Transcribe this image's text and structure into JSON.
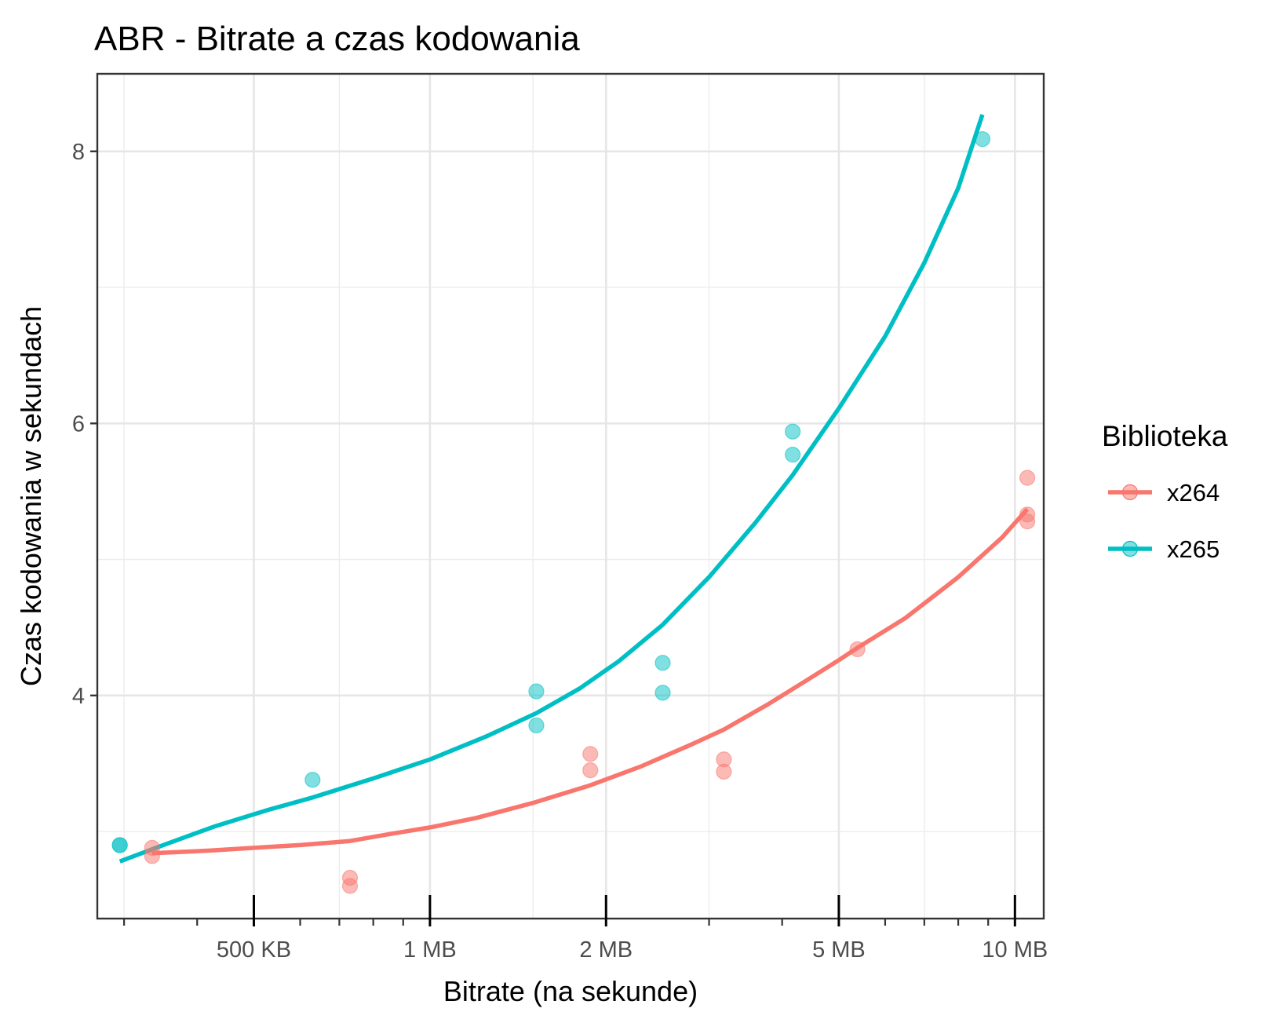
{
  "chart_data": {
    "type": "scatter",
    "title": "ABR - Bitrate a czas kodowania",
    "xlabel": "Bitrate (na sekunde)",
    "ylabel": "Czas kodowania w sekundach",
    "x_scale": "log10",
    "x_unit": "KB",
    "xlim": [
      270,
      11200
    ],
    "ylim": [
      2.36,
      8.57
    ],
    "x_ticks": [
      {
        "value": 500,
        "label": "500 KB"
      },
      {
        "value": 1000,
        "label": "1 MB"
      },
      {
        "value": 2000,
        "label": "2 MB"
      },
      {
        "value": 5000,
        "label": "5 MB"
      },
      {
        "value": 10000,
        "label": "10 MB"
      }
    ],
    "y_ticks": [
      {
        "value": 4,
        "label": "4"
      },
      {
        "value": 6,
        "label": "6"
      },
      {
        "value": 8,
        "label": "8"
      }
    ],
    "y_minor": [
      3,
      5,
      7
    ],
    "grid": true,
    "legend": {
      "title": "Biblioteka",
      "position": "right"
    },
    "series": [
      {
        "name": "x264",
        "color": "#F8766D",
        "points": [
          {
            "x": 335,
            "y": 2.88
          },
          {
            "x": 335,
            "y": 2.82
          },
          {
            "x": 730,
            "y": 2.66
          },
          {
            "x": 730,
            "y": 2.6
          },
          {
            "x": 1880,
            "y": 3.57
          },
          {
            "x": 1880,
            "y": 3.45
          },
          {
            "x": 3180,
            "y": 3.53
          },
          {
            "x": 3180,
            "y": 3.44
          },
          {
            "x": 5380,
            "y": 4.34
          },
          {
            "x": 10500,
            "y": 5.6
          },
          {
            "x": 10500,
            "y": 5.33
          },
          {
            "x": 10500,
            "y": 5.28
          }
        ],
        "fit": [
          {
            "x": 335,
            "y": 2.84
          },
          {
            "x": 420,
            "y": 2.86
          },
          {
            "x": 500,
            "y": 2.88
          },
          {
            "x": 600,
            "y": 2.9
          },
          {
            "x": 730,
            "y": 2.93
          },
          {
            "x": 850,
            "y": 2.98
          },
          {
            "x": 1000,
            "y": 3.03
          },
          {
            "x": 1200,
            "y": 3.1
          },
          {
            "x": 1500,
            "y": 3.21
          },
          {
            "x": 1880,
            "y": 3.34
          },
          {
            "x": 2300,
            "y": 3.48
          },
          {
            "x": 2800,
            "y": 3.64
          },
          {
            "x": 3180,
            "y": 3.75
          },
          {
            "x": 3800,
            "y": 3.94
          },
          {
            "x": 4400,
            "y": 4.11
          },
          {
            "x": 5000,
            "y": 4.26
          },
          {
            "x": 5380,
            "y": 4.35
          },
          {
            "x": 6500,
            "y": 4.57
          },
          {
            "x": 8000,
            "y": 4.87
          },
          {
            "x": 9500,
            "y": 5.16
          },
          {
            "x": 10500,
            "y": 5.37
          }
        ]
      },
      {
        "name": "x265",
        "color": "#00BFC4",
        "points": [
          {
            "x": 295,
            "y": 2.9
          },
          {
            "x": 295,
            "y": 2.9
          },
          {
            "x": 630,
            "y": 3.38
          },
          {
            "x": 1520,
            "y": 4.03
          },
          {
            "x": 1520,
            "y": 3.78
          },
          {
            "x": 2500,
            "y": 4.24
          },
          {
            "x": 2500,
            "y": 4.02
          },
          {
            "x": 4170,
            "y": 5.94
          },
          {
            "x": 4170,
            "y": 5.77
          },
          {
            "x": 8800,
            "y": 8.09
          }
        ],
        "fit": [
          {
            "x": 295,
            "y": 2.78
          },
          {
            "x": 350,
            "y": 2.9
          },
          {
            "x": 430,
            "y": 3.04
          },
          {
            "x": 530,
            "y": 3.16
          },
          {
            "x": 630,
            "y": 3.25
          },
          {
            "x": 800,
            "y": 3.39
          },
          {
            "x": 1000,
            "y": 3.53
          },
          {
            "x": 1250,
            "y": 3.7
          },
          {
            "x": 1520,
            "y": 3.87
          },
          {
            "x": 1800,
            "y": 4.05
          },
          {
            "x": 2100,
            "y": 4.25
          },
          {
            "x": 2500,
            "y": 4.52
          },
          {
            "x": 3000,
            "y": 4.87
          },
          {
            "x": 3600,
            "y": 5.27
          },
          {
            "x": 4170,
            "y": 5.62
          },
          {
            "x": 5000,
            "y": 6.11
          },
          {
            "x": 6000,
            "y": 6.64
          },
          {
            "x": 7000,
            "y": 7.18
          },
          {
            "x": 8000,
            "y": 7.73
          },
          {
            "x": 8800,
            "y": 8.27
          }
        ]
      }
    ]
  }
}
